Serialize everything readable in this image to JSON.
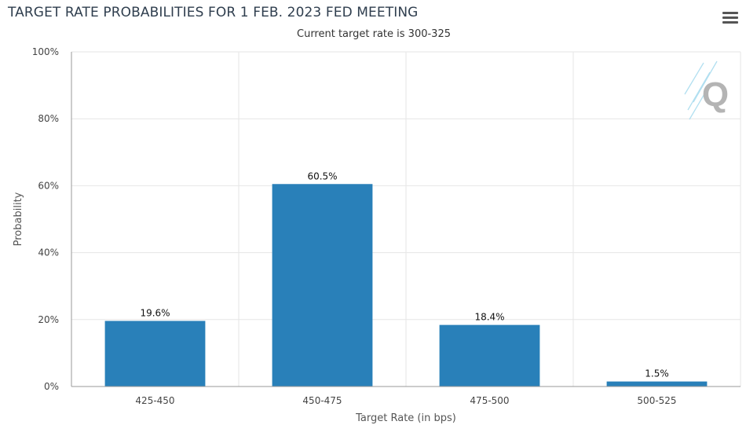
{
  "header": {
    "title": "TARGET RATE PROBABILITIES FOR 1 FEB. 2023 FED MEETING",
    "subtitle": "Current target rate is 300-325",
    "menu_icon": "hamburger-menu-icon"
  },
  "watermark": {
    "icon": "quikstrike-q-logo",
    "text": "Q"
  },
  "colors": {
    "bar": "#2980b9",
    "grid": "#e6e6e6",
    "axis": "#999999"
  },
  "chart_data": {
    "type": "bar",
    "title": "TARGET RATE PROBABILITIES FOR 1 FEB. 2023 FED MEETING",
    "subtitle": "Current target rate is 300-325",
    "xlabel": "Target Rate (in bps)",
    "ylabel": "Probability",
    "categories": [
      "425-450",
      "450-475",
      "475-500",
      "500-525"
    ],
    "values": [
      19.6,
      60.5,
      18.4,
      1.5
    ],
    "data_labels": [
      "19.6%",
      "60.5%",
      "18.4%",
      "1.5%"
    ],
    "ylim": [
      0,
      100
    ],
    "yticks": [
      0,
      20,
      40,
      60,
      80,
      100
    ],
    "ytick_labels": [
      "0%",
      "20%",
      "40%",
      "60%",
      "80%",
      "100%"
    ],
    "grid": true,
    "legend": "none"
  }
}
